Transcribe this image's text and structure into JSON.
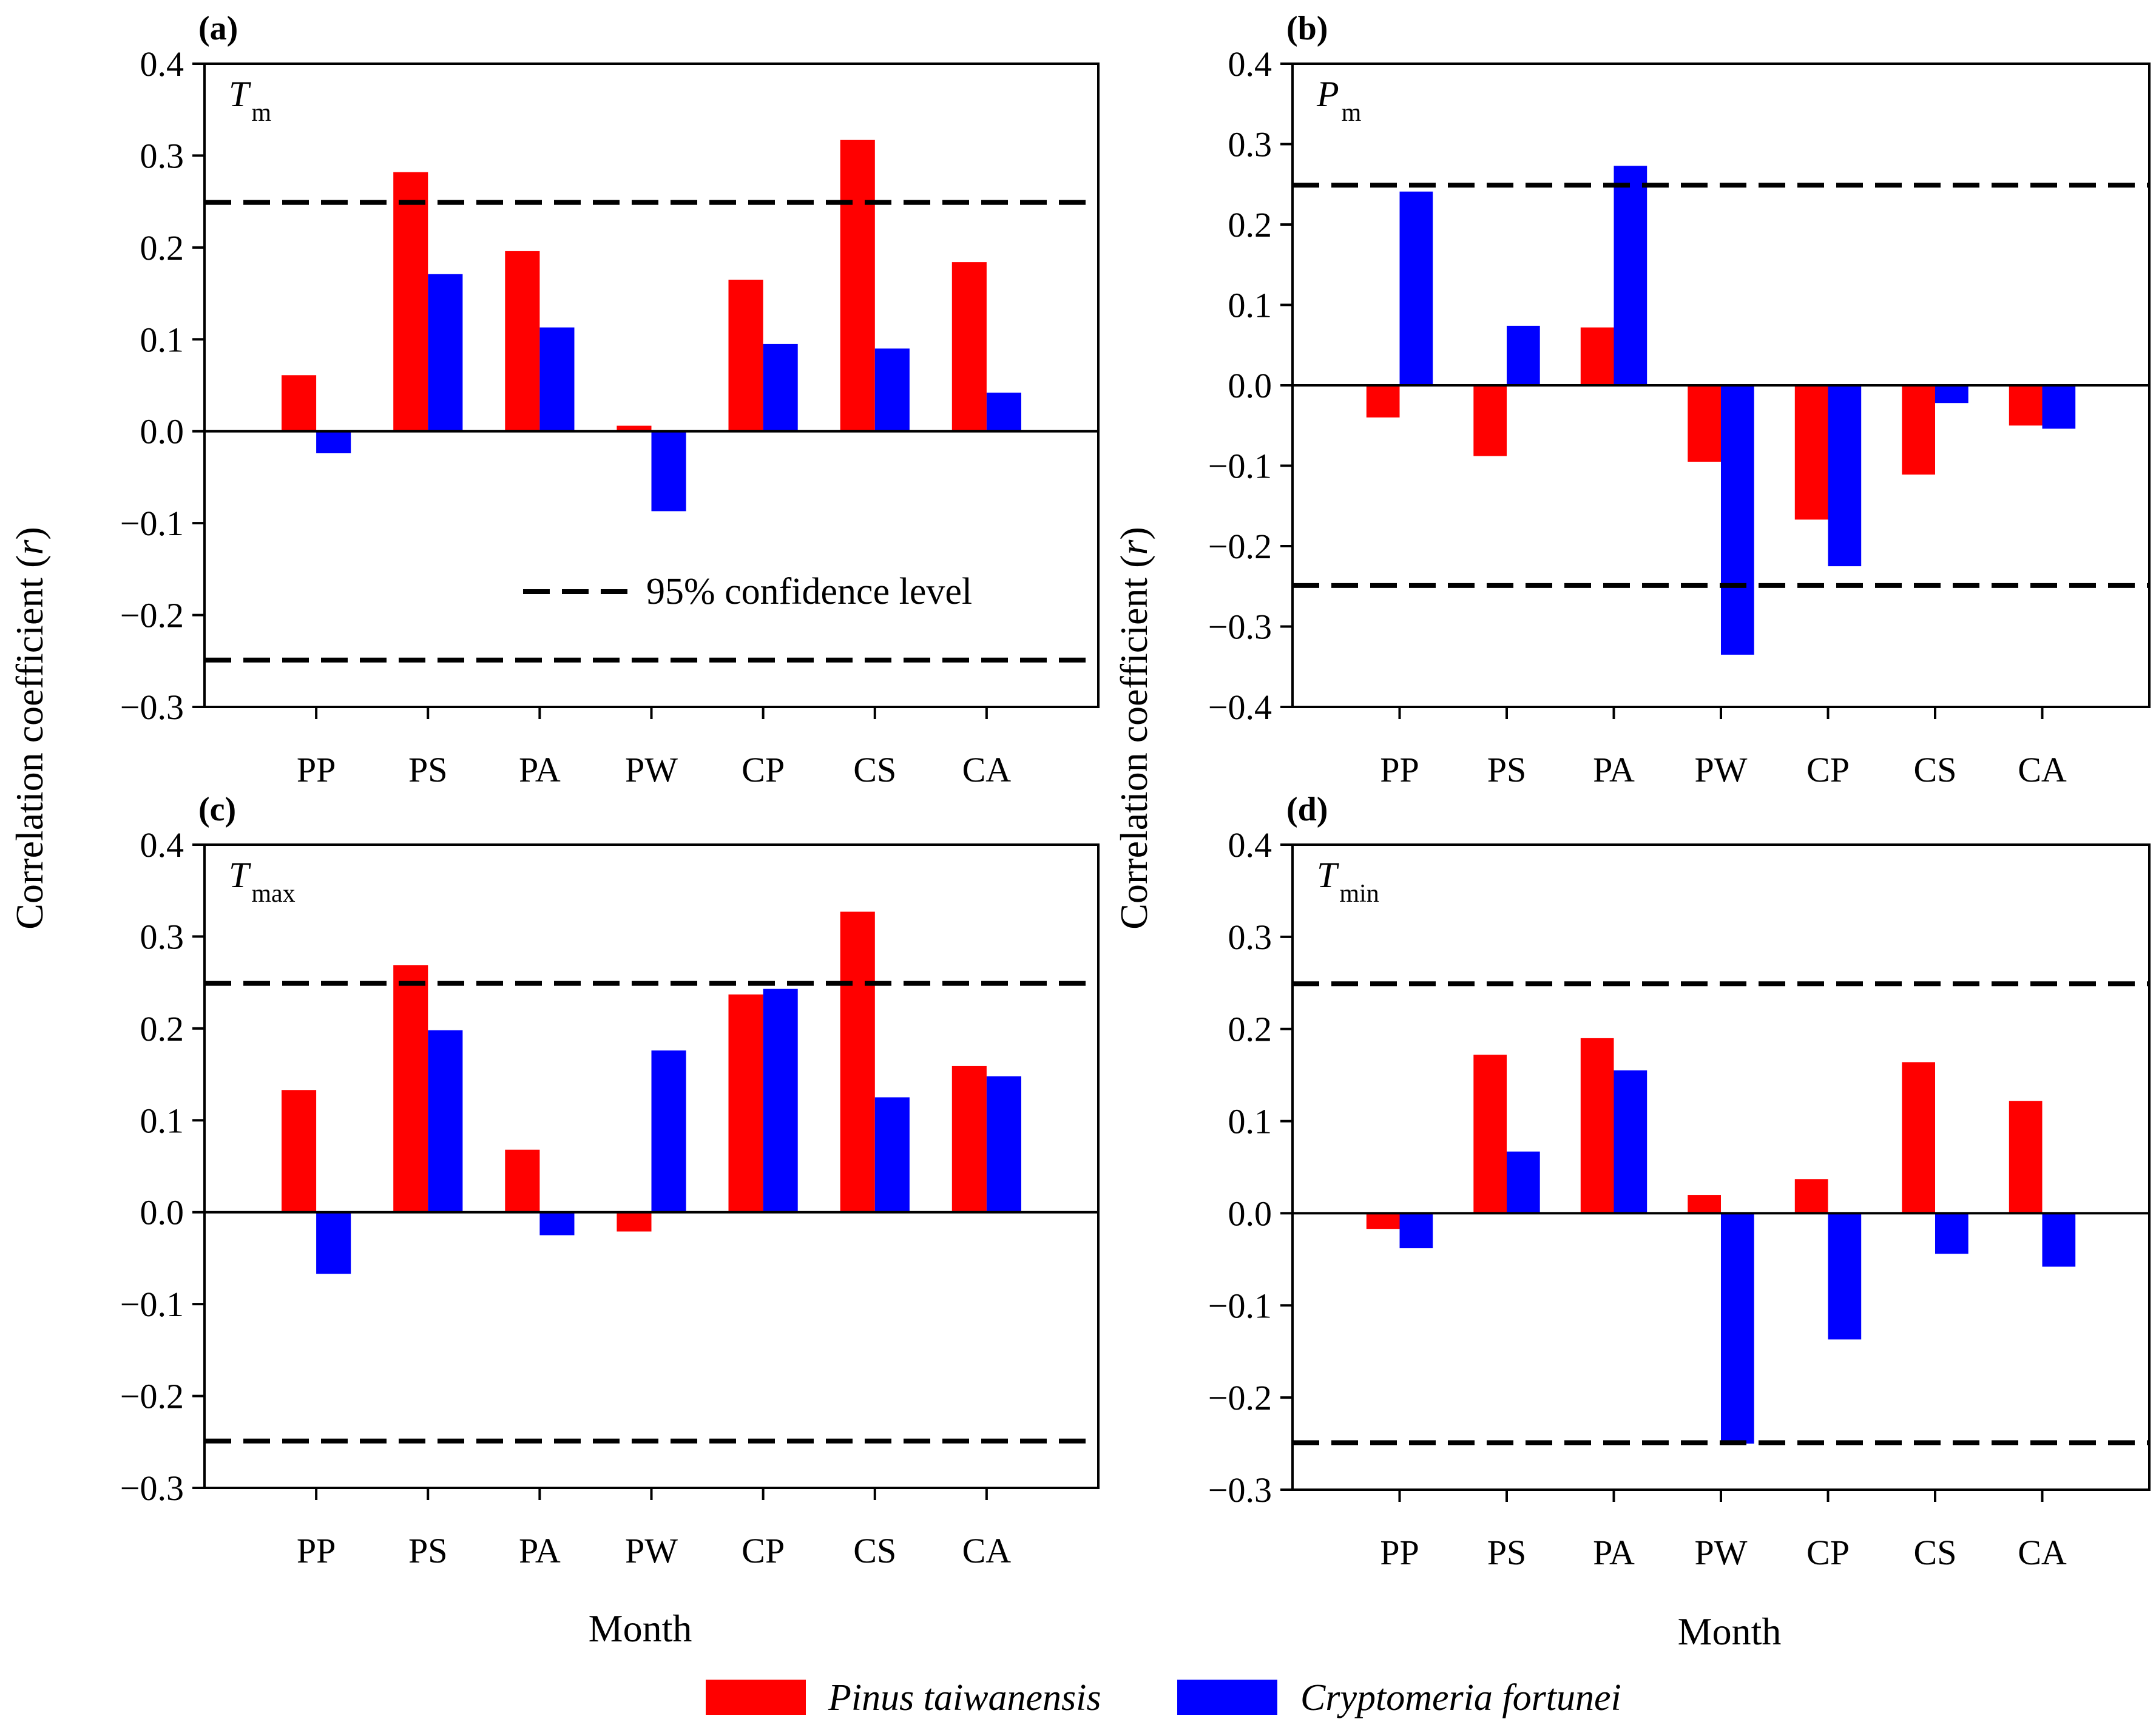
{
  "chart_data": [
    {
      "type": "bar",
      "panel_label": "(a)",
      "variable": "T",
      "variable_sub": "m",
      "categories": [
        "PP",
        "PS",
        "PA",
        "PW",
        "CP",
        "CS",
        "CA"
      ],
      "ylim": [
        -0.3,
        0.4
      ],
      "yticks": [
        "0.4",
        "0.3",
        "0.2",
        "0.1",
        "0.0",
        "-0.1",
        "-0.2",
        "-0.3"
      ],
      "series": [
        {
          "name": "Pinus taiwanensis",
          "color": "#ff0000",
          "values": [
            0.061,
            0.282,
            0.196,
            0.006,
            0.165,
            0.317,
            0.184
          ]
        },
        {
          "name": "Cryptomeria fortunei",
          "color": "#0000ff",
          "values": [
            -0.024,
            0.171,
            0.113,
            -0.087,
            0.095,
            0.09,
            0.042
          ]
        }
      ],
      "threshold": 0.249,
      "threshold_label": "95% confidence level"
    },
    {
      "type": "bar",
      "panel_label": "(b)",
      "variable": "P",
      "variable_sub": "m",
      "categories": [
        "PP",
        "PS",
        "PA",
        "PW",
        "CP",
        "CS",
        "CA"
      ],
      "ylim": [
        -0.4,
        0.4
      ],
      "yticks": [
        "0.4",
        "0.3",
        "0.2",
        "0.1",
        "0.0",
        "-0.1",
        "-0.2",
        "-0.3",
        "-0.4"
      ],
      "series": [
        {
          "name": "Pinus taiwanensis",
          "color": "#ff0000",
          "values": [
            -0.04,
            -0.088,
            0.072,
            -0.095,
            -0.167,
            -0.111,
            -0.05
          ]
        },
        {
          "name": "Cryptomeria fortunei",
          "color": "#0000ff",
          "values": [
            0.241,
            0.074,
            0.273,
            -0.335,
            -0.225,
            -0.022,
            -0.054
          ]
        }
      ],
      "threshold": 0.249
    },
    {
      "type": "bar",
      "panel_label": "(c)",
      "variable": "T",
      "variable_sub": "max",
      "categories": [
        "PP",
        "PS",
        "PA",
        "PW",
        "CP",
        "CS",
        "CA"
      ],
      "ylim": [
        -0.3,
        0.4
      ],
      "yticks": [
        "0.4",
        "0.3",
        "0.2",
        "0.1",
        "0.0",
        "-0.1",
        "-0.2",
        "-0.3"
      ],
      "series": [
        {
          "name": "Pinus taiwanensis",
          "color": "#ff0000",
          "values": [
            0.133,
            0.269,
            0.068,
            -0.021,
            0.237,
            0.327,
            0.159
          ]
        },
        {
          "name": "Cryptomeria fortunei",
          "color": "#0000ff",
          "values": [
            -0.067,
            0.198,
            -0.025,
            0.176,
            0.243,
            0.125,
            0.148
          ]
        }
      ],
      "threshold": 0.249
    },
    {
      "type": "bar",
      "panel_label": "(d)",
      "variable": "T",
      "variable_sub": "min",
      "categories": [
        "PP",
        "PS",
        "PA",
        "PW",
        "CP",
        "CS",
        "CA"
      ],
      "ylim": [
        -0.3,
        0.4
      ],
      "yticks": [
        "0.4",
        "0.3",
        "0.2",
        "0.1",
        "0.0",
        "-0.1",
        "-0.2",
        "-0.3"
      ],
      "series": [
        {
          "name": "Pinus taiwanensis",
          "color": "#ff0000",
          "values": [
            -0.017,
            0.172,
            0.19,
            0.02,
            0.037,
            0.164,
            0.122
          ]
        },
        {
          "name": "Cryptomeria fortunei",
          "color": "#0000ff",
          "values": [
            -0.038,
            0.067,
            0.155,
            -0.25,
            -0.137,
            -0.044,
            -0.058
          ]
        }
      ],
      "threshold": 0.249
    }
  ],
  "axes": {
    "ylabel": "Correlation coefficient (",
    "ylabel_var": "r",
    "ylabel_end": ")",
    "xlabel": "Month"
  },
  "legend": [
    {
      "name": "Pinus taiwanensis",
      "color": "#ff0000"
    },
    {
      "name": "Cryptomeria fortunei",
      "color": "#0000ff"
    }
  ]
}
